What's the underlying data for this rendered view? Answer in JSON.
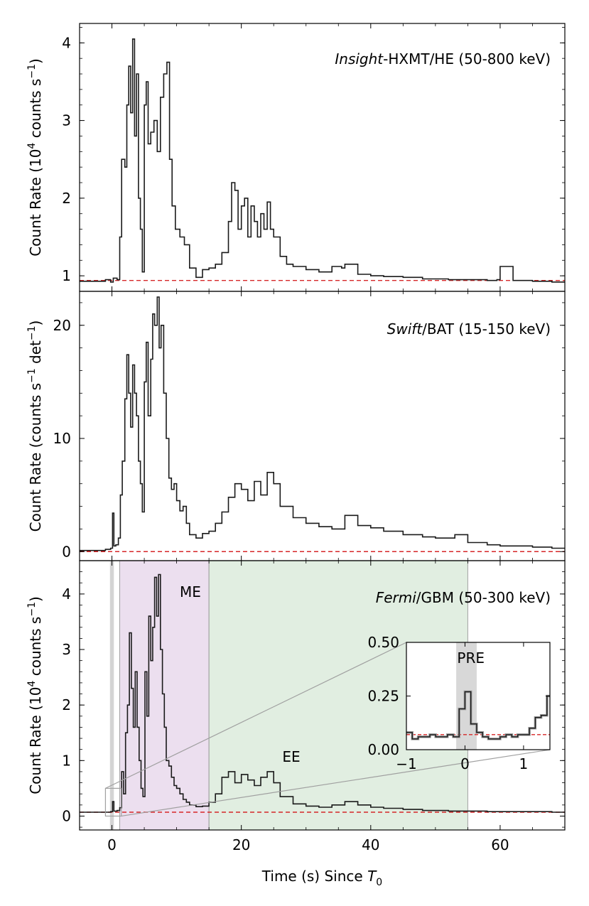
{
  "chart_data": [
    {
      "type": "line",
      "panel": "top",
      "instrument_italic": "Insight",
      "instrument_rest": "-HXMT/HE (50-800 keV)",
      "ylabel_prefix": "Count Rate (10",
      "ylabel_exp": "4",
      "ylabel_mid": " counts s",
      "ylabel_exp2": "−1",
      "ylabel_suffix": ")",
      "xlim": [
        -5,
        70
      ],
      "ylim": [
        0.8,
        4.25
      ],
      "yticks": [
        1,
        2,
        3,
        4
      ],
      "ytick_labels": [
        "1",
        "2",
        "3",
        "4"
      ],
      "background_level": 0.94,
      "series": [
        {
          "x": [
            -5,
            -1,
            -0.2,
            0.2,
            0.8,
            1.2,
            1.5,
            2,
            2.3,
            2.6,
            2.9,
            3.2,
            3.5,
            3.8,
            4.1,
            4.4,
            4.7,
            5,
            5.3,
            5.6,
            6,
            6.5,
            7,
            7.5,
            8,
            8.5,
            8.9,
            9.3,
            9.8,
            10.5,
            11.2,
            12,
            13,
            14,
            15,
            16,
            17,
            18,
            18.5,
            19,
            19.5,
            20,
            20.5,
            21,
            21.5,
            22,
            22.5,
            23,
            23.5,
            24,
            24.5,
            25,
            26,
            27,
            28,
            30,
            32,
            34,
            35.5,
            36,
            38,
            40,
            42,
            45,
            48,
            50,
            52,
            55,
            58,
            59.5,
            60,
            62,
            65,
            68,
            70
          ],
          "values": [
            0.93,
            0.95,
            0.92,
            0.97,
            0.95,
            1.5,
            2.5,
            2.4,
            3.2,
            3.7,
            3.1,
            4.05,
            2.8,
            3.6,
            2.0,
            1.6,
            1.05,
            3.2,
            3.5,
            2.7,
            2.85,
            3.0,
            2.6,
            3.3,
            3.6,
            3.75,
            2.5,
            1.9,
            1.6,
            1.5,
            1.4,
            1.1,
            0.98,
            1.08,
            1.1,
            1.15,
            1.3,
            1.7,
            2.2,
            2.1,
            1.6,
            1.9,
            2.0,
            1.5,
            1.9,
            1.7,
            1.5,
            1.8,
            1.6,
            1.95,
            1.6,
            1.5,
            1.25,
            1.15,
            1.12,
            1.08,
            1.05,
            1.12,
            1.1,
            1.15,
            1.02,
            1.0,
            0.99,
            0.98,
            0.96,
            0.96,
            0.95,
            0.95,
            0.94,
            0.95,
            1.12,
            0.94,
            0.93,
            0.92,
            0.92
          ]
        }
      ]
    },
    {
      "type": "line",
      "panel": "middle",
      "instrument_italic": "Swift",
      "instrument_rest": "/BAT (15-150 keV)",
      "ylabel_prefix": "Count Rate (counts s",
      "ylabel_exp": "−1",
      "ylabel_mid": " det",
      "ylabel_exp2": "−1",
      "ylabel_suffix": ")",
      "xlim": [
        -5,
        70
      ],
      "ylim": [
        -0.8,
        23
      ],
      "yticks": [
        0,
        10,
        20
      ],
      "ytick_labels": [
        "0",
        "10",
        "20"
      ],
      "background_level": 0.0,
      "series": [
        {
          "x": [
            -5,
            -1,
            -0.2,
            0.1,
            0.3,
            0.6,
            1,
            1.3,
            1.6,
            2,
            2.3,
            2.6,
            2.9,
            3.2,
            3.5,
            3.8,
            4.1,
            4.4,
            4.7,
            5,
            5.3,
            5.6,
            6,
            6.3,
            6.6,
            7,
            7.3,
            7.6,
            8,
            8.4,
            8.8,
            9.2,
            9.6,
            10,
            10.5,
            11,
            11.5,
            12,
            13,
            14,
            15,
            16,
            17,
            18,
            19,
            20,
            21,
            22,
            23,
            24,
            25,
            26,
            28,
            30,
            32,
            34,
            36,
            38,
            40,
            42,
            45,
            48,
            50,
            53,
            55,
            58,
            60,
            62,
            65,
            68,
            70
          ],
          "values": [
            0.1,
            0.2,
            0.3,
            3.4,
            0.5,
            0.6,
            1.2,
            5.0,
            8.0,
            13.5,
            17.4,
            14.0,
            11.0,
            16.5,
            14.0,
            12.0,
            8.0,
            6.0,
            3.5,
            15.0,
            18.5,
            12.0,
            17.0,
            21.0,
            20.0,
            22.5,
            18.0,
            20.0,
            14.0,
            10.0,
            6.5,
            5.5,
            6.0,
            4.5,
            3.6,
            4.0,
            2.5,
            1.5,
            1.2,
            1.6,
            1.8,
            2.5,
            3.5,
            4.8,
            6.0,
            5.5,
            4.5,
            6.2,
            5.0,
            7.0,
            6.0,
            4.0,
            3.0,
            2.5,
            2.2,
            2.0,
            3.2,
            2.3,
            2.1,
            1.8,
            1.5,
            1.3,
            1.2,
            1.5,
            0.8,
            0.6,
            0.5,
            0.5,
            0.4,
            0.3,
            0.3
          ]
        }
      ]
    },
    {
      "type": "line",
      "panel": "bottom",
      "instrument_italic": "Fermi",
      "instrument_rest": "/GBM (50-300 keV)",
      "ylabel_prefix": "Count Rate (10",
      "ylabel_exp": "4",
      "ylabel_mid": " counts s",
      "ylabel_exp2": "−1",
      "ylabel_suffix": ")",
      "xlabel_prefix": "Time (s) Since ",
      "xlabel_sym": "T",
      "xlabel_sub": "0",
      "xlim": [
        -5,
        70
      ],
      "ylim": [
        -0.25,
        4.6
      ],
      "yticks": [
        0,
        1,
        2,
        3,
        4
      ],
      "ytick_labels": [
        "0",
        "1",
        "2",
        "3",
        "4"
      ],
      "xticks": [
        0,
        20,
        40,
        60
      ],
      "xtick_labels": [
        "0",
        "20",
        "40",
        "60"
      ],
      "background_level": 0.07,
      "regions": [
        {
          "label": "",
          "x": [
            -0.3,
            0.3
          ],
          "color": "#b0b0b0"
        },
        {
          "label": "ME",
          "x": [
            1.2,
            15
          ],
          "color": "#c8a2d0"
        },
        {
          "label": "EE",
          "x": [
            15,
            55
          ],
          "color": "#a8cfa8"
        }
      ],
      "series": [
        {
          "x": [
            -5,
            -1,
            -0.2,
            0.1,
            0.3,
            0.8,
            1.2,
            1.5,
            1.8,
            2.1,
            2.4,
            2.7,
            3,
            3.3,
            3.6,
            3.9,
            4.2,
            4.5,
            4.8,
            5.1,
            5.4,
            5.7,
            6,
            6.3,
            6.6,
            6.9,
            7.2,
            7.5,
            7.8,
            8.1,
            8.4,
            8.8,
            9.2,
            9.6,
            10,
            10.5,
            11,
            11.5,
            12,
            13,
            14,
            15,
            16,
            17,
            18,
            19,
            20,
            21,
            22,
            23,
            24,
            25,
            26,
            28,
            30,
            32,
            34,
            36,
            38,
            40,
            42,
            45,
            48,
            50,
            52,
            55,
            58,
            60,
            62,
            65,
            68,
            70
          ],
          "values": [
            0.07,
            0.07,
            0.08,
            0.26,
            0.09,
            0.1,
            0.15,
            0.8,
            0.4,
            1.5,
            2.0,
            3.3,
            2.3,
            1.6,
            2.6,
            1.6,
            1.0,
            0.5,
            0.35,
            2.6,
            1.8,
            3.6,
            2.8,
            3.4,
            4.3,
            3.6,
            4.35,
            3.0,
            2.2,
            1.6,
            1.0,
            0.9,
            0.7,
            0.55,
            0.5,
            0.4,
            0.3,
            0.25,
            0.2,
            0.17,
            0.18,
            0.25,
            0.4,
            0.7,
            0.8,
            0.6,
            0.75,
            0.65,
            0.55,
            0.7,
            0.8,
            0.6,
            0.35,
            0.22,
            0.18,
            0.16,
            0.2,
            0.26,
            0.2,
            0.16,
            0.14,
            0.12,
            0.1,
            0.1,
            0.09,
            0.09,
            0.08,
            0.08,
            0.08,
            0.08,
            0.07,
            0.07
          ]
        }
      ],
      "inset": {
        "label": "PRE",
        "xlim": [
          -1,
          1.45
        ],
        "ylim": [
          0,
          0.5
        ],
        "yticks": [
          0,
          0.25,
          0.5
        ],
        "ytick_labels": [
          "0.00",
          "0.25",
          "0.50"
        ],
        "xticks": [
          -1,
          0,
          1
        ],
        "xtick_labels": [
          "−1",
          "0",
          "1"
        ],
        "pre_region": [
          -0.15,
          0.2
        ],
        "background_level": 0.07,
        "zoom_box": {
          "x": [
            -1,
            1.45
          ],
          "y": [
            0,
            0.5
          ]
        },
        "x": [
          -1,
          -0.9,
          -0.8,
          -0.7,
          -0.6,
          -0.5,
          -0.4,
          -0.3,
          -0.2,
          -0.1,
          0,
          0.1,
          0.2,
          0.3,
          0.4,
          0.5,
          0.6,
          0.7,
          0.8,
          0.9,
          1.0,
          1.1,
          1.2,
          1.3,
          1.4
        ],
        "values": [
          0.08,
          0.05,
          0.06,
          0.06,
          0.07,
          0.06,
          0.06,
          0.07,
          0.06,
          0.19,
          0.27,
          0.12,
          0.08,
          0.06,
          0.05,
          0.05,
          0.06,
          0.07,
          0.06,
          0.07,
          0.07,
          0.1,
          0.15,
          0.16,
          0.25
        ]
      }
    }
  ]
}
